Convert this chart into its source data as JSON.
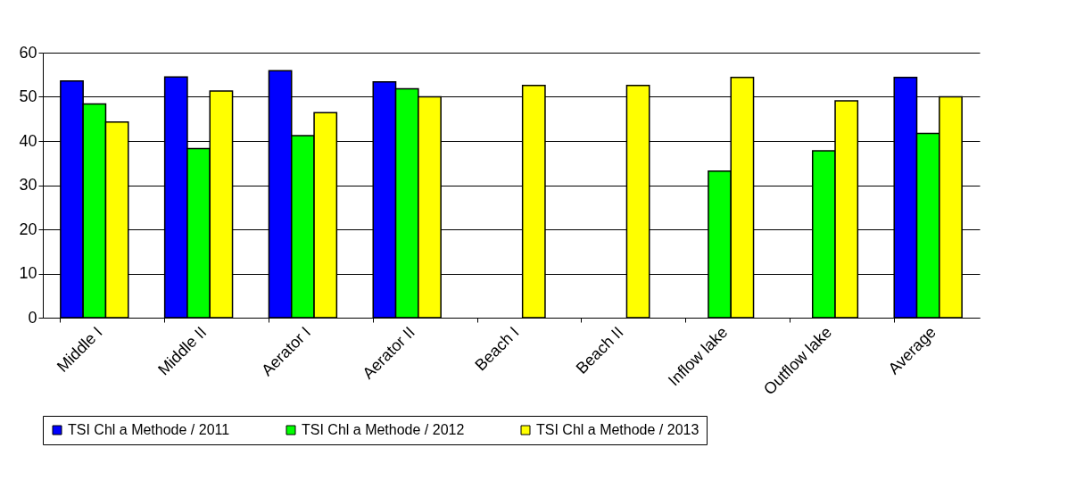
{
  "chart_data": {
    "type": "bar",
    "categories": [
      "Middle I",
      "Middle II",
      "Aerator I",
      "Aerator II",
      "Beach I",
      "Beach II",
      "Inflow lake",
      "Outflow lake",
      "Average"
    ],
    "series": [
      {
        "name": "TSI Chl a Methode / 2011",
        "color": "#0000ff",
        "values": [
          53.6,
          54.5,
          55.9,
          53.4,
          null,
          null,
          null,
          null,
          54.4
        ]
      },
      {
        "name": "TSI Chl a Methode / 2012",
        "color": "#00ff00",
        "values": [
          48.4,
          38.3,
          41.2,
          51.8,
          null,
          null,
          33.2,
          37.8,
          41.7
        ]
      },
      {
        "name": "TSI Chl a Methode / 2013",
        "color": "#ffff00",
        "values": [
          44.3,
          51.3,
          46.4,
          50.0,
          52.6,
          52.6,
          54.4,
          49.1,
          50.0
        ]
      }
    ],
    "ylim": [
      0,
      60
    ],
    "yticks": [
      0,
      10,
      20,
      30,
      40,
      50,
      60
    ],
    "grid": "y",
    "legend": "bottom"
  }
}
